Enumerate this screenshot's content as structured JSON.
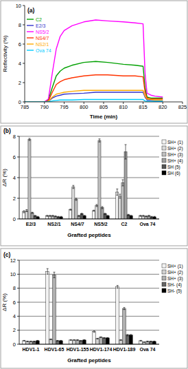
{
  "chart_data": [
    {
      "type": "line",
      "title": "(a)",
      "x_label": "Time (min)",
      "y_label": "Reflectivity (%)",
      "x": [
        785,
        788,
        790,
        791,
        792,
        793,
        794,
        795,
        797,
        800,
        803,
        806,
        810,
        813,
        815,
        815.5,
        816,
        817,
        818,
        820
      ],
      "series": [
        {
          "name": "C2",
          "color": "#00a000",
          "values": [
            0,
            0,
            0,
            0.2,
            1.5,
            2.7,
            3.2,
            3.5,
            3.8,
            4.1,
            4.2,
            4.1,
            3.9,
            3.8,
            3.7,
            1.5,
            0.5,
            0.4,
            0.4,
            0.4
          ]
        },
        {
          "name": "E2/3",
          "color": "#3333cc",
          "values": [
            0,
            0,
            0,
            0.05,
            0.4,
            0.6,
            0.7,
            0.8,
            0.85,
            0.9,
            1.0,
            1.0,
            1.0,
            1.0,
            1.0,
            0.5,
            0.2,
            0.2,
            0.15,
            0.15
          ]
        },
        {
          "name": "NS5/2",
          "color": "#ff00ff",
          "values": [
            0,
            0,
            0,
            0.3,
            3.0,
            5.5,
            6.8,
            7.4,
            7.9,
            8.3,
            8.5,
            8.4,
            8.3,
            8.2,
            8.1,
            3.0,
            0.9,
            0.7,
            0.6,
            0.5
          ]
        },
        {
          "name": "NS4/7",
          "color": "#ff3300",
          "values": [
            0,
            0,
            0,
            0.1,
            1.0,
            1.8,
            2.1,
            2.3,
            2.5,
            2.7,
            2.8,
            2.8,
            2.7,
            2.7,
            2.6,
            1.0,
            0.4,
            0.3,
            0.3,
            0.3
          ]
        },
        {
          "name": "NS2/1",
          "color": "#ffaa00",
          "values": [
            0,
            0,
            0,
            0.05,
            0.5,
            0.8,
            0.9,
            1.0,
            1.1,
            1.2,
            1.2,
            1.2,
            1.2,
            1.2,
            1.2,
            0.6,
            0.3,
            0.25,
            0.2,
            0.2
          ]
        },
        {
          "name": "Ova 74",
          "color": "#00ccff",
          "values": [
            0,
            0,
            0,
            0,
            0.1,
            0.15,
            0.2,
            0.2,
            0.2,
            0.25,
            0.25,
            0.25,
            0.25,
            0.25,
            0.25,
            0.1,
            0.05,
            0.05,
            0.05,
            0.05
          ]
        }
      ],
      "xlim": [
        785,
        825
      ],
      "xticks": [
        785,
        790,
        795,
        800,
        805,
        810,
        815,
        820,
        825
      ],
      "ylim": [
        0,
        10
      ],
      "yticks": [
        0,
        2,
        4,
        6,
        8,
        10
      ],
      "grid": false,
      "legend": "upper left"
    },
    {
      "type": "bar",
      "title": "(b)",
      "x_label": "Grafted peptides",
      "y_label": "ΔR (%)",
      "categories": [
        "E2/3",
        "NS2/1",
        "NS4/7",
        "NS5/2",
        "C2",
        "Ova 74"
      ],
      "series": [
        {
          "name": "SH+ (1)",
          "color": "#f2f2f2",
          "values": [
            0.7,
            0.3,
            0.9,
            0.8,
            2.6,
            0.3
          ],
          "errors": [
            0.1,
            0.05,
            0.05,
            0.05,
            0.3,
            0.05
          ]
        },
        {
          "name": "SH+ (2)",
          "color": "#d9d9d9",
          "values": [
            0.8,
            0.3,
            3.1,
            1.3,
            2.2,
            0.3
          ],
          "errors": [
            0.1,
            0.05,
            0.15,
            0.1,
            0.2,
            0.05
          ]
        },
        {
          "name": "SH+ (3)",
          "color": "#bfbfbf",
          "values": [
            7.7,
            0.3,
            1.9,
            7.6,
            3.5,
            0.25
          ],
          "errors": [
            0.1,
            0.05,
            0.1,
            0.15,
            0.3,
            0.05
          ]
        },
        {
          "name": "SH+ (4)",
          "color": "#a0a0a0",
          "values": [
            0.6,
            0.25,
            0.3,
            1.1,
            6.5,
            0.3
          ],
          "errors": [
            0.05,
            0.05,
            0.05,
            0.1,
            0.7,
            0.05
          ]
        },
        {
          "name": "SH (5)",
          "color": "#555555",
          "values": [
            0.3,
            0.2,
            0.5,
            0.5,
            0.4,
            0.2
          ],
          "errors": [
            0.05,
            0.05,
            0.05,
            0.05,
            0.05,
            0.05
          ]
        },
        {
          "name": "SH (6)",
          "color": "#000000",
          "values": [
            0.2,
            0.2,
            0.3,
            0.3,
            0.3,
            0.2
          ],
          "errors": [
            0.05,
            0.05,
            0.05,
            0.05,
            0.05,
            0.05
          ]
        }
      ],
      "ylim": [
        0,
        8
      ],
      "yticks": [
        0,
        2,
        4,
        6,
        8
      ],
      "grid": true,
      "legend": "right"
    },
    {
      "type": "bar",
      "title": "(c)",
      "x_label": "Grafted peptides",
      "y_label": "ΔR (%)",
      "categories": [
        "HDV1-1",
        "HDV1-65",
        "HDV1-155",
        "HDV1-174",
        "HDV1-189",
        "Ova 74"
      ],
      "series": [
        {
          "name": "SH+ (1)",
          "color": "#f2f2f2",
          "values": [
            0.5,
            10.4,
            0.6,
            1.8,
            8.2,
            0.5
          ],
          "errors": [
            0.05,
            0.4,
            0.05,
            0.1,
            0.2,
            0.05
          ]
        },
        {
          "name": "SH+ (2)",
          "color": "#d0d0d0",
          "values": [
            0.4,
            0.7,
            0.6,
            0.8,
            0.6,
            0.3
          ],
          "errors": [
            0.05,
            0.05,
            0.05,
            0.05,
            0.05,
            0.05
          ]
        },
        {
          "name": "SH+ (3)",
          "color": "#b0b0b0",
          "values": [
            0.4,
            9.9,
            0.6,
            1.0,
            5.1,
            0.4
          ],
          "errors": [
            0.05,
            0.4,
            0.05,
            0.05,
            0.15,
            0.05
          ]
        },
        {
          "name": "SH- (4)",
          "color": "#666666",
          "values": [
            0.4,
            0.5,
            0.5,
            0.9,
            1.3,
            0.4
          ],
          "errors": [
            0.05,
            0.05,
            0.05,
            0.05,
            0.1,
            0.05
          ]
        },
        {
          "name": "SH- (5)",
          "color": "#000000",
          "values": [
            0.5,
            0.5,
            0.6,
            0.9,
            1.3,
            0.4
          ],
          "errors": [
            0.05,
            0.05,
            0.05,
            0.05,
            0.1,
            0.05
          ]
        }
      ],
      "ylim": [
        0,
        12
      ],
      "yticks": [
        0,
        2,
        4,
        6,
        8,
        10,
        12
      ],
      "grid": true,
      "legend": "right"
    }
  ]
}
